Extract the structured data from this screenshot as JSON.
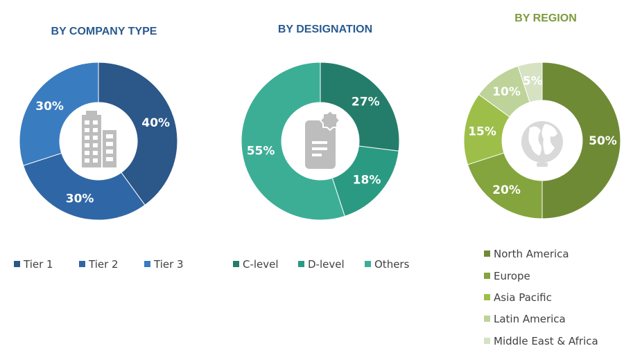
{
  "chart_data": [
    {
      "type": "pie",
      "title": "BY COMPANY TYPE",
      "categories": [
        "Tier 1",
        "Tier 2",
        "Tier 3"
      ],
      "values": [
        40,
        30,
        30
      ],
      "value_labels": [
        "40%",
        "30%",
        "30%"
      ],
      "colors": [
        "#2b5789",
        "#2f66a6",
        "#3a7cc0"
      ],
      "title_color": "#2a5a90",
      "legend": "bottom",
      "center_icon": "buildings-icon"
    },
    {
      "type": "pie",
      "title": "BY DESIGNATION",
      "categories": [
        "C-level",
        "D-level",
        "Others"
      ],
      "values": [
        27,
        18,
        55
      ],
      "value_labels": [
        "27%",
        "18%",
        "55%"
      ],
      "colors": [
        "#247d6a",
        "#2b9a83",
        "#3cae96"
      ],
      "title_color": "#2a5a90",
      "legend": "bottom",
      "center_icon": "document-certificate-icon"
    },
    {
      "type": "pie",
      "title": "BY REGION",
      "categories": [
        "North America",
        "Europe",
        "Asia Pacific",
        "Latin America",
        "Middle East & Africa"
      ],
      "values": [
        50,
        20,
        15,
        10,
        5
      ],
      "value_labels": [
        "50%",
        "20%",
        "15%",
        "10%",
        "5%"
      ],
      "colors": [
        "#6f8a35",
        "#84a43d",
        "#9dbf4a",
        "#bdd39a",
        "#d6e2c2"
      ],
      "title_color": "#7d9a3c",
      "legend": "bottom",
      "center_icon": "globe-icon"
    }
  ]
}
